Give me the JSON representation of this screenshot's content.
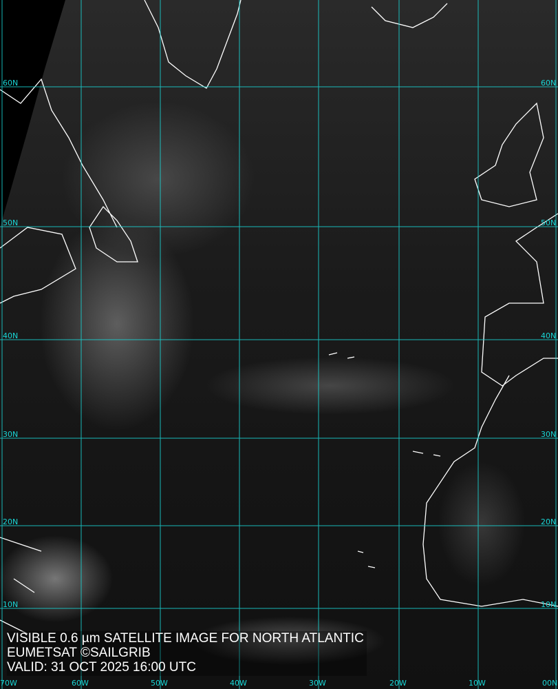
{
  "caption": {
    "line1": "VISIBLE 0.6 µm SATELLITE IMAGE FOR NORTH ATLANTIC",
    "line2": "EUMETSAT ©SAILGRIB",
    "line3": "VALID:  31 OCT 2025 16:00 UTC"
  },
  "latitude_labels": [
    "60N",
    "50N",
    "40N",
    "30N",
    "20N",
    "10N"
  ],
  "longitude_labels": [
    "70W",
    "60W",
    "50W",
    "40W",
    "30W",
    "20W",
    "10W",
    "00N"
  ],
  "colors": {
    "grid": "#19d6d6",
    "coastline": "#ffffff"
  }
}
